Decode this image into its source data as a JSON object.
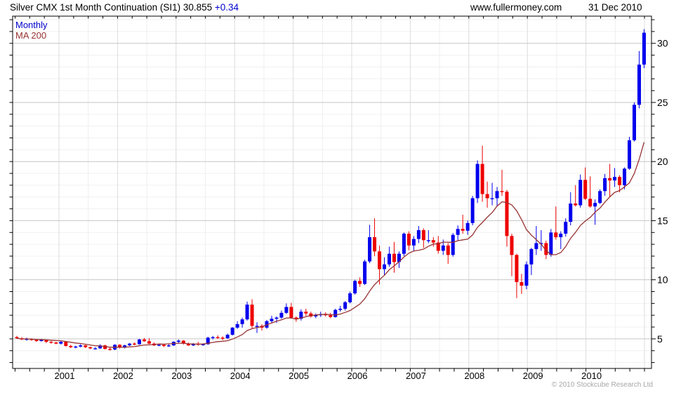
{
  "header": {
    "title": "Silver CMX 1st Month Continuation (SI1) 30.855",
    "change": "+0.34",
    "website": "www.fullermoney.com",
    "date": "31 Dec 2010"
  },
  "legend": {
    "timeframe_label": "Monthly",
    "ma_label": "MA 200"
  },
  "footer": {
    "copyright": "© 2010 Stockcube Research Ltd"
  },
  "colors": {
    "up": "#0000ee",
    "down": "#ee0000",
    "ma": "#993333",
    "change": "#0000cc",
    "legend_timeframe": "#0000cc",
    "legend_ma": "#993333",
    "grid_minor": "#f0f0f0",
    "grid_major": "#c6c6c6",
    "grid_year": "#dcdcdc",
    "grid_half": "#efefef",
    "frame": "#000000",
    "text": "#000000",
    "copyright": "#a6a6a6"
  },
  "chart_data": {
    "type": "candlestick",
    "title": "Silver CMX 1st Month Continuation (SI1)",
    "timeframe": "Monthly",
    "last_price": 30.855,
    "change": 0.34,
    "overlay": {
      "label": "MA 200",
      "approx_window_months": 10
    },
    "grid": true,
    "y_axis": {
      "side": "right",
      "ticks": [
        5,
        10,
        15,
        20,
        25,
        30
      ],
      "range": [
        2.5,
        32.3
      ]
    },
    "x_axis": {
      "years": [
        2001,
        2002,
        2003,
        2004,
        2005,
        2006,
        2007,
        2008,
        2009,
        2010
      ]
    },
    "start_month": "2000-04",
    "ohlc_fields": [
      "open",
      "high",
      "low",
      "close"
    ],
    "ohlc": [
      [
        5.15,
        5.25,
        5.0,
        5.05
      ],
      [
        5.05,
        5.15,
        4.9,
        4.95
      ],
      [
        4.95,
        5.1,
        4.85,
        5.0
      ],
      [
        5.0,
        5.05,
        4.85,
        4.9
      ],
      [
        4.9,
        5.0,
        4.75,
        4.85
      ],
      [
        4.85,
        5.0,
        4.78,
        4.9
      ],
      [
        4.9,
        4.95,
        4.65,
        4.75
      ],
      [
        4.75,
        4.82,
        4.6,
        4.7
      ],
      [
        4.7,
        4.75,
        4.55,
        4.6
      ],
      [
        4.6,
        4.82,
        4.52,
        4.75
      ],
      [
        4.75,
        4.8,
        4.35,
        4.4
      ],
      [
        4.4,
        4.5,
        4.22,
        4.3
      ],
      [
        4.3,
        4.42,
        4.2,
        4.35
      ],
      [
        4.35,
        4.55,
        4.28,
        4.45
      ],
      [
        4.45,
        4.5,
        4.22,
        4.3
      ],
      [
        4.3,
        4.35,
        4.12,
        4.2
      ],
      [
        4.2,
        4.3,
        4.1,
        4.2
      ],
      [
        4.2,
        4.55,
        4.15,
        4.45
      ],
      [
        4.45,
        4.5,
        4.1,
        4.15
      ],
      [
        4.15,
        4.25,
        4.02,
        4.1
      ],
      [
        4.1,
        4.55,
        4.05,
        4.5
      ],
      [
        4.5,
        4.55,
        4.18,
        4.25
      ],
      [
        4.25,
        4.5,
        4.2,
        4.45
      ],
      [
        4.45,
        4.65,
        4.4,
        4.6
      ],
      [
        4.6,
        4.7,
        4.45,
        4.55
      ],
      [
        4.55,
        5.0,
        4.5,
        4.95
      ],
      [
        4.95,
        5.08,
        4.75,
        4.8
      ],
      [
        4.8,
        5.05,
        4.55,
        4.6
      ],
      [
        4.6,
        4.7,
        4.4,
        4.45
      ],
      [
        4.45,
        4.6,
        4.38,
        4.5
      ],
      [
        4.5,
        4.55,
        4.3,
        4.4
      ],
      [
        4.4,
        4.55,
        4.32,
        4.45
      ],
      [
        4.45,
        4.8,
        4.4,
        4.75
      ],
      [
        4.75,
        4.95,
        4.62,
        4.85
      ],
      [
        4.85,
        4.9,
        4.52,
        4.6
      ],
      [
        4.6,
        4.7,
        4.4,
        4.45
      ],
      [
        4.45,
        4.65,
        4.4,
        4.6
      ],
      [
        4.6,
        4.75,
        4.42,
        4.5
      ],
      [
        4.5,
        4.62,
        4.42,
        4.55
      ],
      [
        4.55,
        5.18,
        4.5,
        5.1
      ],
      [
        5.1,
        5.25,
        4.95,
        5.15
      ],
      [
        5.15,
        5.3,
        5.0,
        5.1
      ],
      [
        5.1,
        5.22,
        4.9,
        5.05
      ],
      [
        5.05,
        5.45,
        5.0,
        5.35
      ],
      [
        5.35,
        6.0,
        5.28,
        5.95
      ],
      [
        5.95,
        6.5,
        5.85,
        6.25
      ],
      [
        6.25,
        6.8,
        5.95,
        6.65
      ],
      [
        6.65,
        8.15,
        6.55,
        7.9
      ],
      [
        7.9,
        8.35,
        5.9,
        6.1
      ],
      [
        6.1,
        6.4,
        5.5,
        6.1
      ],
      [
        6.1,
        6.25,
        5.7,
        5.95
      ],
      [
        5.95,
        6.6,
        5.85,
        6.5
      ],
      [
        6.5,
        6.95,
        6.3,
        6.7
      ],
      [
        6.7,
        6.9,
        6.35,
        6.8
      ],
      [
        6.8,
        7.4,
        6.7,
        7.2
      ],
      [
        7.2,
        8.0,
        7.1,
        7.7
      ],
      [
        7.7,
        8.05,
        6.7,
        6.8
      ],
      [
        6.8,
        6.9,
        6.45,
        6.7
      ],
      [
        6.7,
        7.5,
        6.55,
        7.3
      ],
      [
        7.3,
        7.55,
        6.95,
        7.15
      ],
      [
        7.15,
        7.3,
        6.8,
        6.9
      ],
      [
        6.9,
        7.15,
        6.75,
        7.0
      ],
      [
        7.0,
        7.3,
        6.85,
        7.1
      ],
      [
        7.1,
        7.25,
        6.9,
        7.0
      ],
      [
        7.0,
        7.2,
        6.75,
        6.85
      ],
      [
        6.85,
        7.55,
        6.8,
        7.45
      ],
      [
        7.45,
        7.8,
        7.3,
        7.55
      ],
      [
        7.55,
        8.2,
        7.4,
        8.1
      ],
      [
        8.1,
        9.0,
        8.0,
        8.85
      ],
      [
        8.85,
        10.0,
        8.75,
        9.9
      ],
      [
        9.9,
        10.2,
        9.4,
        9.65
      ],
      [
        9.65,
        11.7,
        9.55,
        11.55
      ],
      [
        11.55,
        14.65,
        11.4,
        13.6
      ],
      [
        13.6,
        15.2,
        12.0,
        12.4
      ],
      [
        12.4,
        12.9,
        9.6,
        10.9
      ],
      [
        10.9,
        11.9,
        10.4,
        11.3
      ],
      [
        11.3,
        12.8,
        11.1,
        12.2
      ],
      [
        12.2,
        13.2,
        10.6,
        11.5
      ],
      [
        11.5,
        12.4,
        11.0,
        12.2
      ],
      [
        12.2,
        14.0,
        12.0,
        13.9
      ],
      [
        13.9,
        14.1,
        12.5,
        12.9
      ],
      [
        12.9,
        13.7,
        12.4,
        13.45
      ],
      [
        13.45,
        14.55,
        13.1,
        14.2
      ],
      [
        14.2,
        14.35,
        12.7,
        13.35
      ],
      [
        13.35,
        14.2,
        13.1,
        13.35
      ],
      [
        13.35,
        13.6,
        12.8,
        13.15
      ],
      [
        13.15,
        13.7,
        12.2,
        12.45
      ],
      [
        12.45,
        13.4,
        12.1,
        12.9
      ],
      [
        12.9,
        13.1,
        11.35,
        12.1
      ],
      [
        12.1,
        13.95,
        11.95,
        13.8
      ],
      [
        13.8,
        14.6,
        13.3,
        14.3
      ],
      [
        14.3,
        15.5,
        13.9,
        14.15
      ],
      [
        14.15,
        15.0,
        13.8,
        14.8
      ],
      [
        14.8,
        17.1,
        14.6,
        16.9
      ],
      [
        16.9,
        20.1,
        16.5,
        19.8
      ],
      [
        19.8,
        21.35,
        16.6,
        17.25
      ],
      [
        17.25,
        18.3,
        16.1,
        16.9
      ],
      [
        16.9,
        18.2,
        16.3,
        16.9
      ],
      [
        16.9,
        17.85,
        16.2,
        17.5
      ],
      [
        17.5,
        19.3,
        17.1,
        17.45
      ],
      [
        17.45,
        17.6,
        12.8,
        13.7
      ],
      [
        13.7,
        13.9,
        10.3,
        12.1
      ],
      [
        12.1,
        12.2,
        8.45,
        9.8
      ],
      [
        9.8,
        10.5,
        8.8,
        9.5
      ],
      [
        9.5,
        11.55,
        9.2,
        11.3
      ],
      [
        11.3,
        12.7,
        10.4,
        12.6
      ],
      [
        12.6,
        14.55,
        12.1,
        13.1
      ],
      [
        13.1,
        14.2,
        12.45,
        13.1
      ],
      [
        13.1,
        13.3,
        11.75,
        12.1
      ],
      [
        12.1,
        14.3,
        11.95,
        14.0
      ],
      [
        14.0,
        16.2,
        13.4,
        13.6
      ],
      [
        13.6,
        14.1,
        12.6,
        13.9
      ],
      [
        13.9,
        15.2,
        13.65,
        14.9
      ],
      [
        14.9,
        17.4,
        14.6,
        16.45
      ],
      [
        16.45,
        18.0,
        16.2,
        16.3
      ],
      [
        16.3,
        18.9,
        16.1,
        18.45
      ],
      [
        18.45,
        19.5,
        16.75,
        16.85
      ],
      [
        16.85,
        18.75,
        16.1,
        16.2
      ],
      [
        16.2,
        16.8,
        14.65,
        16.5
      ],
      [
        16.5,
        17.65,
        16.4,
        17.5
      ],
      [
        17.5,
        18.95,
        17.1,
        18.6
      ],
      [
        18.6,
        19.8,
        17.05,
        18.4
      ],
      [
        18.4,
        19.45,
        17.85,
        18.7
      ],
      [
        18.7,
        18.85,
        17.4,
        18.0
      ],
      [
        18.0,
        19.5,
        17.65,
        19.4
      ],
      [
        19.4,
        22.1,
        19.3,
        21.8
      ],
      [
        21.8,
        25.0,
        21.7,
        24.8
      ],
      [
        24.8,
        29.35,
        24.5,
        28.2
      ],
      [
        28.2,
        31.2,
        27.9,
        30.9
      ]
    ]
  }
}
